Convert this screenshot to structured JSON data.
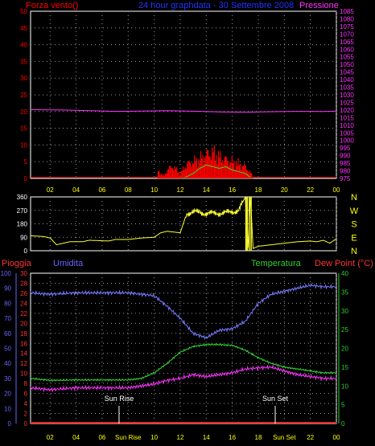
{
  "header": {
    "left": "Forza vento()",
    "center": "24 hour graphdata - 30 Settembre 2008",
    "right": "Pressione"
  },
  "colors": {
    "bg": "#000000",
    "grid": "#9a9a9a",
    "pressure": "#ff33ff",
    "wind": "#ff0000",
    "gust": "#33dd33",
    "gust_yellow": "#ffff00",
    "direction": "#ffff33",
    "rain": "#ff2222",
    "humidity": "#7777ff",
    "temperature": "#33dd33",
    "dewpoint": "#ff33ff",
    "ticks": "#ffff00",
    "humidity_axis": "#6666ff",
    "temp_axis": "#33cc33",
    "rain_axis": "#ff3333",
    "title_blue": "#2233ff"
  },
  "x_ticks": [
    "02",
    "04",
    "06",
    "08",
    "10",
    "12",
    "14",
    "16",
    "18",
    "20",
    "22",
    "00"
  ],
  "x_ticks_bottom": [
    "02",
    "04",
    "06",
    "Sun Rise",
    "10",
    "12",
    "14",
    "16",
    "18",
    "Sun Set",
    "22",
    "00"
  ],
  "chart_data": [
    {
      "type": "line",
      "title": "24 hour graphdata - 30 Settembre 2008",
      "ylabel_left": "Forza vento()",
      "ylabel_right": "Pressione",
      "x_hours": [
        0.5,
        24
      ],
      "ylim_wind": [
        0,
        50
      ],
      "ylim_pressure": [
        975,
        1085
      ],
      "wind_ticks": [
        "0",
        "5",
        "10",
        "15",
        "20",
        "25",
        "30",
        "35",
        "40",
        "45",
        "50"
      ],
      "pressure_ticks": [
        "975",
        "980",
        "985",
        "990",
        "995",
        "1000",
        "1005",
        "1010",
        "1015",
        "1020",
        "1025",
        "1030",
        "1035",
        "1040",
        "1045",
        "1050",
        "1055",
        "1060",
        "1065",
        "1070",
        "1075",
        "1080",
        "1085"
      ],
      "series": [
        {
          "name": "Pressione",
          "x": [
            0.5,
            3,
            5,
            7,
            9,
            11,
            13,
            15,
            17,
            19,
            21,
            23,
            24
          ],
          "values": [
            1020.2,
            1020,
            1019.6,
            1019.1,
            1019.3,
            1019.6,
            1019.2,
            1018.8,
            1018.6,
            1018.9,
            1019.1,
            1019.0,
            1019.3
          ]
        },
        {
          "name": "Vento",
          "x": [
            10.3,
            10.8,
            11.0,
            11.5,
            12.0,
            12.5,
            13.0,
            13.5,
            14.0,
            14.5,
            15.0,
            15.5,
            16.0,
            16.5,
            17.0,
            17.3,
            17.6
          ],
          "values": [
            3,
            1,
            4,
            5,
            2,
            6,
            7,
            8,
            10,
            11,
            9,
            8,
            7,
            6,
            5,
            3,
            1
          ]
        },
        {
          "name": "Raffica",
          "x": [
            12.0,
            12.5,
            13.0,
            13.5,
            14.0,
            14.5,
            15.0,
            15.5,
            16.0,
            16.5,
            17.0,
            17.5
          ],
          "values": [
            0,
            0.5,
            1.5,
            3,
            4,
            3.5,
            3,
            3.5,
            2.5,
            2,
            1.5,
            0
          ]
        }
      ]
    },
    {
      "type": "line",
      "ylabel_right": [
        "N",
        "W",
        "S",
        "E",
        "N"
      ],
      "ylim": [
        0,
        360
      ],
      "ticks": [
        "0",
        "90",
        "180",
        "270",
        "360"
      ],
      "series": [
        {
          "name": "Direzione",
          "x": [
            0.5,
            1.5,
            2.0,
            2.5,
            3.5,
            4.5,
            5.0,
            6.5,
            7.0,
            8.0,
            9.0,
            10.0,
            10.5,
            11.0,
            11.5,
            12.0,
            12.5,
            13.0,
            14.0,
            15.0,
            16.0,
            16.5,
            17.0,
            17.2,
            17.4,
            17.6,
            18.0,
            19.0,
            20.0,
            21.0,
            22.0,
            22.5,
            23.0,
            23.5,
            24.0
          ],
          "values": [
            100,
            95,
            85,
            40,
            60,
            60,
            70,
            65,
            75,
            75,
            85,
            90,
            120,
            130,
            125,
            120,
            250,
            260,
            250,
            250,
            260,
            270,
            360,
            20,
            360,
            15,
            30,
            40,
            50,
            60,
            65,
            60,
            70,
            50,
            80
          ]
        }
      ]
    },
    {
      "type": "line",
      "labels": {
        "rain": "Pioggia",
        "humidity": "Umidita",
        "temperature": "Temperatura",
        "dewpoint": "Dew Point (°C)"
      },
      "annotations": [
        "Sun Rise",
        "Sun Set"
      ],
      "sunrise_hour": 7.3,
      "sunset_hour": 19.3,
      "humidity_ticks": [
        "0",
        "10",
        "20",
        "30",
        "40",
        "50",
        "60",
        "70",
        "80",
        "90",
        "100"
      ],
      "rain_ticks": [
        "0",
        "2",
        "4",
        "6",
        "8",
        "10",
        "12",
        "14",
        "16",
        "18",
        "20",
        "22",
        "24",
        "26",
        "28",
        "30"
      ],
      "temp_ticks": [
        "0",
        "5",
        "10",
        "15",
        "20",
        "25",
        "30",
        "35",
        "40"
      ],
      "ylim_humidity": [
        0,
        100
      ],
      "ylim_temp": [
        0,
        40
      ],
      "series": [
        {
          "name": "Umidita",
          "x": [
            0.5,
            2,
            4,
            6,
            8,
            10,
            11,
            12,
            13,
            14,
            15,
            16,
            17,
            18,
            19,
            20,
            21,
            22,
            23,
            24
          ],
          "values": [
            87,
            86,
            87,
            87,
            87,
            85,
            78,
            70,
            60,
            57,
            62,
            63,
            68,
            80,
            86,
            88,
            90,
            92,
            91,
            91
          ]
        },
        {
          "name": "Temperatura",
          "x": [
            0.5,
            2,
            4,
            6,
            8,
            9,
            10,
            11,
            12,
            13,
            14,
            15,
            16,
            17,
            18,
            19,
            20,
            21,
            22,
            23,
            24
          ],
          "values": [
            12,
            11.5,
            11.6,
            11.6,
            11.6,
            12,
            13.5,
            16,
            19,
            20.5,
            21,
            21,
            20.8,
            19.5,
            17.5,
            16,
            15,
            14.5,
            14,
            13.5,
            13.5
          ]
        },
        {
          "name": "Dew Point (°C)",
          "x": [
            0.5,
            2,
            4,
            6,
            8,
            9,
            10,
            11,
            12,
            13,
            14,
            15,
            16,
            17,
            18,
            19,
            20,
            21,
            22,
            23,
            24
          ],
          "values": [
            9.5,
            9.0,
            9.5,
            9.5,
            9.5,
            10,
            10.5,
            11.5,
            12,
            13,
            12.5,
            13,
            13.5,
            14.5,
            14.8,
            15,
            14,
            13,
            12.5,
            12,
            12
          ]
        },
        {
          "name": "Pioggia",
          "x": [
            0.5,
            24
          ],
          "values": [
            0,
            0
          ]
        }
      ]
    }
  ]
}
